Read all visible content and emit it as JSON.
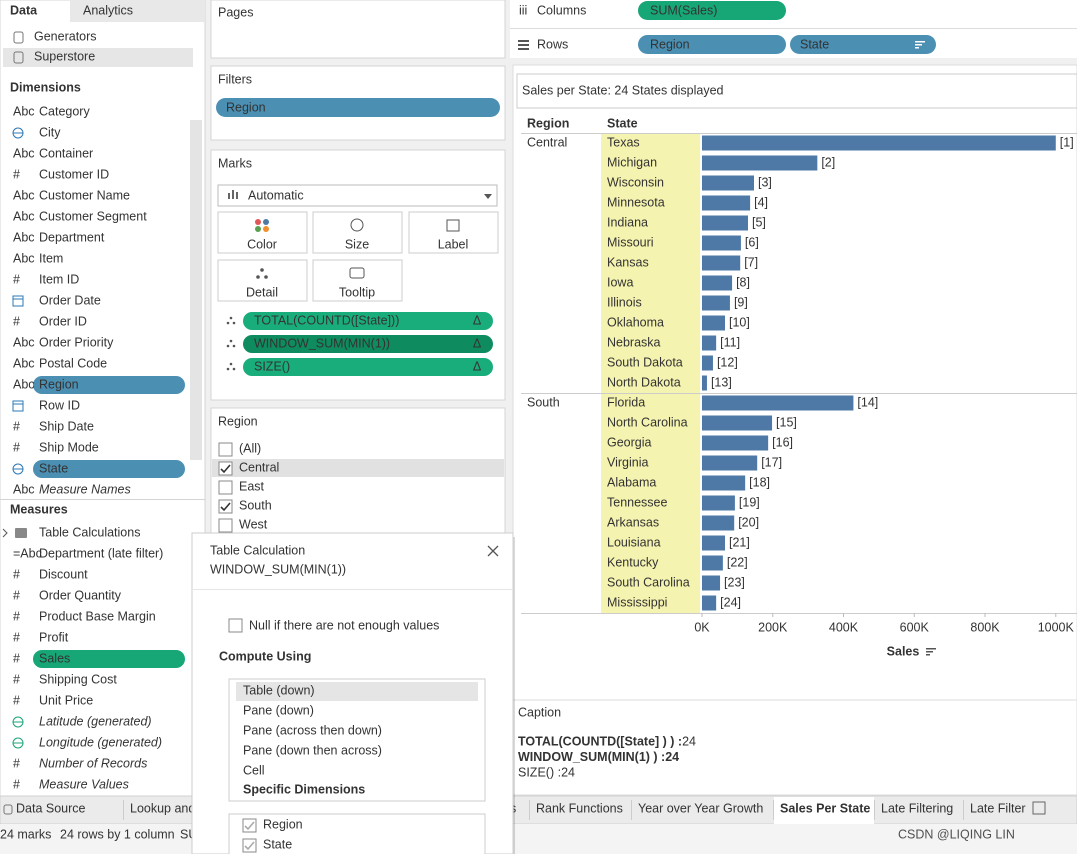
{
  "left_panel": {
    "tabs": [
      "Data",
      "Analytics"
    ],
    "sources": [
      "Generators",
      "Superstore"
    ],
    "dimensions_title": "Dimensions",
    "measures_title": "Measures",
    "icon_text": {
      "string": "Abc",
      "number": "#",
      "calc_string": "=Abc"
    },
    "dimensions": [
      {
        "name": "Category",
        "kind": "string"
      },
      {
        "name": "City",
        "kind": "geo"
      },
      {
        "name": "Container",
        "kind": "string"
      },
      {
        "name": "Customer ID",
        "kind": "number"
      },
      {
        "name": "Customer Name",
        "kind": "string"
      },
      {
        "name": "Customer Segment",
        "kind": "string"
      },
      {
        "name": "Department",
        "kind": "string"
      },
      {
        "name": "Item",
        "kind": "string"
      },
      {
        "name": "Item ID",
        "kind": "number"
      },
      {
        "name": "Order Date",
        "kind": "date"
      },
      {
        "name": "Order ID",
        "kind": "number"
      },
      {
        "name": "Order Priority",
        "kind": "string"
      },
      {
        "name": "Postal Code",
        "kind": "string"
      },
      {
        "name": "Region",
        "kind": "string",
        "pill": "#4b8fb3"
      },
      {
        "name": "Row ID",
        "kind": "date"
      },
      {
        "name": "Ship Date",
        "kind": "number"
      },
      {
        "name": "Ship Mode",
        "kind": "number"
      },
      {
        "name": "State",
        "kind": "geo",
        "pill": "#4b8fb3"
      },
      {
        "name": "Measure Names",
        "kind": "string",
        "italic": true
      }
    ],
    "measures": [
      {
        "name": "Table Calculations",
        "kind": "folder"
      },
      {
        "name": "Department (late filter)",
        "kind": "calc_string"
      },
      {
        "name": "Discount",
        "kind": "number"
      },
      {
        "name": "Order Quantity",
        "kind": "number"
      },
      {
        "name": "Product Base Margin",
        "kind": "number"
      },
      {
        "name": "Profit",
        "kind": "number"
      },
      {
        "name": "Sales",
        "kind": "number",
        "pill": "#17a676"
      },
      {
        "name": "Shipping Cost",
        "kind": "number"
      },
      {
        "name": "Unit Price",
        "kind": "number"
      },
      {
        "name": "Latitude (generated)",
        "kind": "geo",
        "italic": true
      },
      {
        "name": "Longitude (generated)",
        "kind": "geo",
        "italic": true
      },
      {
        "name": "Number of Records",
        "kind": "number",
        "italic": true
      },
      {
        "name": "Measure Values",
        "kind": "number",
        "italic": true
      }
    ]
  },
  "cards": {
    "pages": "Pages",
    "filters": "Filters",
    "filter_pill": "Region",
    "marks": "Marks",
    "mark_type": "Automatic",
    "mark_buttons": [
      "Color",
      "Size",
      "Label",
      "Detail",
      "Tooltip"
    ],
    "mark_pills": [
      {
        "text": "TOTAL(COUNTD([State]))",
        "color": "#1aad7c"
      },
      {
        "text": "WINDOW_SUM(MIN(1))",
        "color": "#0e8c60"
      },
      {
        "text": "SIZE()",
        "color": "#1aad7c"
      }
    ],
    "delta": "Δ",
    "region_filter": {
      "title": "Region",
      "options": [
        {
          "text": "(All)",
          "checked": false
        },
        {
          "text": "Central",
          "checked": true
        },
        {
          "text": "East",
          "checked": false
        },
        {
          "text": "South",
          "checked": true
        },
        {
          "text": "West",
          "checked": false
        }
      ]
    }
  },
  "shelves": {
    "columns_icon": "iii",
    "columns": "Columns",
    "column_pill": "SUM(Sales)",
    "rows": "Rows",
    "row_pills": [
      "Region",
      "State"
    ]
  },
  "chart_data": {
    "type": "bar",
    "title": "Sales per State: 24 States displayed",
    "row_header": "Region",
    "category_header": "State",
    "row_regions": [
      "Central",
      null,
      null,
      null,
      null,
      null,
      null,
      null,
      null,
      null,
      null,
      null,
      null,
      "South",
      null,
      null,
      null,
      null,
      null,
      null,
      null,
      null,
      null,
      null
    ],
    "categories": [
      "Texas",
      "Michigan",
      "Wisconsin",
      "Minnesota",
      "Indiana",
      "Missouri",
      "Kansas",
      "Iowa",
      "Illinois",
      "Oklahoma",
      "Nebraska",
      "South Dakota",
      "North Dakota",
      "Florida",
      "North Carolina",
      "Georgia",
      "Virginia",
      "Alabama",
      "Tennessee",
      "Arkansas",
      "Louisiana",
      "Kentucky",
      "South Carolina",
      "Mississippi"
    ],
    "values": [
      1000000,
      326000,
      147000,
      136000,
      130000,
      110000,
      108000,
      85000,
      79000,
      65000,
      40000,
      31000,
      14000,
      428000,
      198000,
      187000,
      156000,
      122000,
      93000,
      91000,
      65000,
      59000,
      51000,
      40000
    ],
    "rank_labels": [
      "[1]",
      "[2]",
      "[3]",
      "[4]",
      "[5]",
      "[6]",
      "[7]",
      "[8]",
      "[9]",
      "[10]",
      "[11]",
      "[12]",
      "[13]",
      "[14]",
      "[15]",
      "[16]",
      "[17]",
      "[18]",
      "[19]",
      "[20]",
      "[21]",
      "[22]",
      "[23]",
      "[24]"
    ],
    "color": "#4e79a7",
    "highlight_color": "#f5f3b0",
    "xlim": [
      0,
      1060000
    ],
    "xticks": [
      {
        "value": 0,
        "label": "0K"
      },
      {
        "value": 200000,
        "label": "200K"
      },
      {
        "value": 400000,
        "label": "400K"
      },
      {
        "value": 600000,
        "label": "600K"
      },
      {
        "value": 800000,
        "label": "800K"
      },
      {
        "value": 1000000,
        "label": "1000K"
      }
    ],
    "x_label": "Sales"
  },
  "caption": {
    "title": "Caption",
    "lines": [
      [
        "TOTAL(COUNTD([State] ) ) :",
        " 24"
      ],
      [
        "WINDOW_SUM(MIN(1) ) :24",
        ""
      ],
      [
        "SIZE() :",
        " 24"
      ]
    ]
  },
  "dialog": {
    "title": "Table Calculation",
    "subtitle": "WINDOW_SUM(MIN(1))",
    "null_option": "Null if there are not enough values",
    "compute_using": "Compute Using",
    "options": [
      "Table (down)",
      "Pane (down)",
      "Pane (across then down)",
      "Pane (down then across)",
      "Cell"
    ],
    "specific": "Specific Dimensions",
    "dimensions": [
      "Region",
      "State"
    ]
  },
  "tabs": {
    "items": [
      "Data Source",
      "Lookup and",
      "s",
      "Rank Functions",
      "Year over Year Growth",
      "Sales Per State",
      "Late Filtering",
      "Late Filter"
    ],
    "active": 5
  },
  "status": [
    "24 marks",
    "24 rows by 1 column",
    "SU"
  ],
  "watermark": "CSDN @LIQING LIN"
}
